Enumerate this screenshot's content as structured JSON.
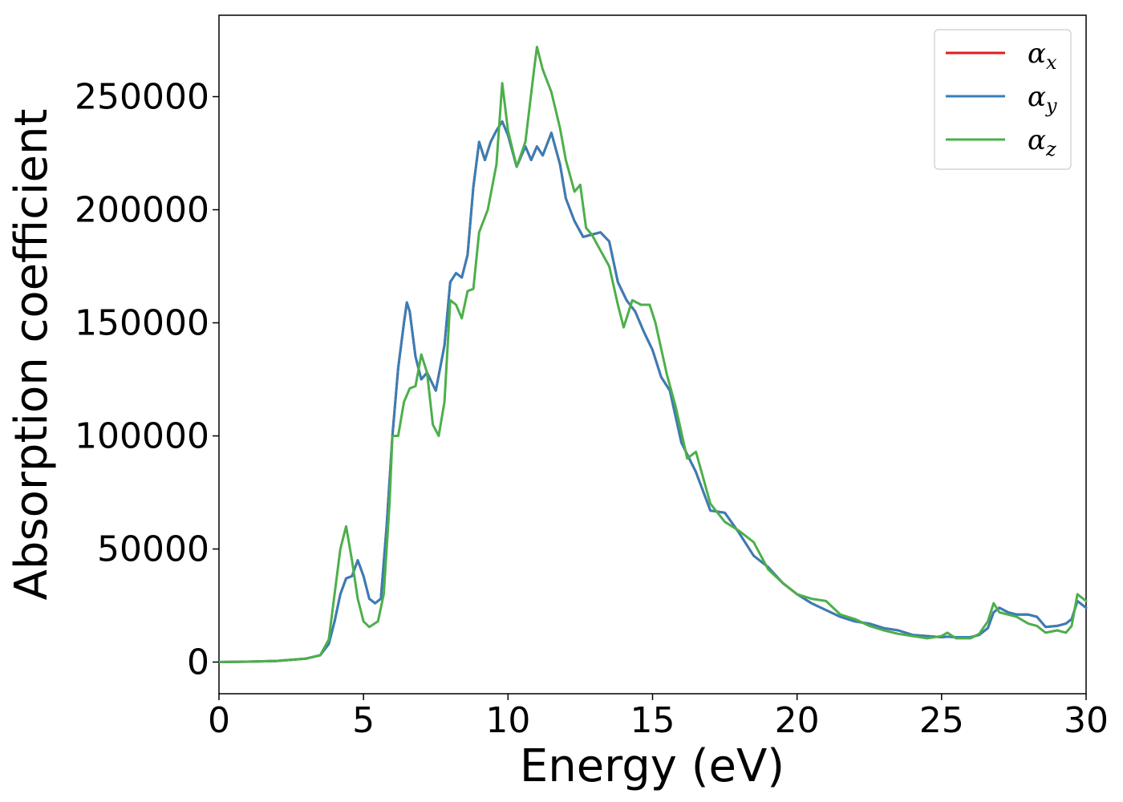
{
  "chart_data": {
    "type": "line",
    "title": "",
    "xlabel": "Energy (eV)",
    "ylabel": "Absorption coefficient",
    "xlim": [
      0,
      30
    ],
    "ylim": [
      -14000,
      286000
    ],
    "xticks": [
      0,
      5,
      10,
      15,
      20,
      25,
      30
    ],
    "yticks": [
      0,
      50000,
      100000,
      150000,
      200000,
      250000
    ],
    "grid": false,
    "legend_position": "top-right",
    "series": [
      {
        "name": "α_x",
        "base": "α",
        "sub": "x",
        "color": "#e41a1c",
        "x": [
          0,
          1,
          2,
          3,
          3.5,
          3.8,
          4.0,
          4.2,
          4.4,
          4.6,
          4.8,
          5.0,
          5.2,
          5.4,
          5.6,
          5.8,
          6.0,
          6.2,
          6.4,
          6.5,
          6.6,
          6.8,
          7.0,
          7.2,
          7.5,
          7.8,
          8.0,
          8.2,
          8.4,
          8.6,
          8.8,
          9.0,
          9.2,
          9.4,
          9.6,
          9.8,
          10.0,
          10.3,
          10.6,
          10.8,
          11.0,
          11.2,
          11.5,
          11.8,
          12.0,
          12.3,
          12.6,
          12.9,
          13.2,
          13.5,
          13.8,
          14.1,
          14.4,
          14.7,
          15.0,
          15.3,
          15.6,
          16.0,
          16.5,
          17.0,
          17.5,
          18.0,
          18.5,
          19.0,
          19.5,
          20.0,
          20.5,
          21.0,
          21.5,
          22.0,
          22.5,
          23.0,
          23.5,
          24.0,
          24.5,
          25.0,
          25.2,
          25.5,
          26.0,
          26.3,
          26.6,
          26.8,
          27.0,
          27.3,
          27.6,
          28.0,
          28.3,
          28.6,
          29.0,
          29.3,
          29.5,
          29.7,
          30.0
        ],
        "values": [
          0,
          200,
          500,
          1500,
          3000,
          8000,
          18000,
          30000,
          37000,
          38000,
          45000,
          38000,
          28000,
          26000,
          28000,
          60000,
          100000,
          130000,
          150000,
          159000,
          155000,
          135000,
          125000,
          128000,
          120000,
          140000,
          168000,
          172000,
          170000,
          180000,
          210000,
          230000,
          222000,
          230000,
          235000,
          239000,
          233000,
          219000,
          228000,
          222000,
          228000,
          224000,
          234000,
          220000,
          205000,
          195000,
          188000,
          189000,
          190000,
          186000,
          168000,
          160000,
          155000,
          146000,
          138000,
          126000,
          120000,
          97000,
          84000,
          67000,
          66000,
          57000,
          47000,
          42000,
          35000,
          30000,
          26000,
          23000,
          20000,
          18000,
          17000,
          15000,
          14000,
          12000,
          11500,
          11000,
          11200,
          11000,
          11000,
          12000,
          15000,
          22000,
          24000,
          22000,
          21000,
          21000,
          20000,
          15500,
          16000,
          17000,
          19000,
          27000,
          24000
        ]
      },
      {
        "name": "α_y",
        "base": "α",
        "sub": "y",
        "color": "#377eb8",
        "x": [
          0,
          1,
          2,
          3,
          3.5,
          3.8,
          4.0,
          4.2,
          4.4,
          4.6,
          4.8,
          5.0,
          5.2,
          5.4,
          5.6,
          5.8,
          6.0,
          6.2,
          6.4,
          6.5,
          6.6,
          6.8,
          7.0,
          7.2,
          7.5,
          7.8,
          8.0,
          8.2,
          8.4,
          8.6,
          8.8,
          9.0,
          9.2,
          9.4,
          9.6,
          9.8,
          10.0,
          10.3,
          10.6,
          10.8,
          11.0,
          11.2,
          11.5,
          11.8,
          12.0,
          12.3,
          12.6,
          12.9,
          13.2,
          13.5,
          13.8,
          14.1,
          14.4,
          14.7,
          15.0,
          15.3,
          15.6,
          16.0,
          16.5,
          17.0,
          17.5,
          18.0,
          18.5,
          19.0,
          19.5,
          20.0,
          20.5,
          21.0,
          21.5,
          22.0,
          22.5,
          23.0,
          23.5,
          24.0,
          24.5,
          25.0,
          25.2,
          25.5,
          26.0,
          26.3,
          26.6,
          26.8,
          27.0,
          27.3,
          27.6,
          28.0,
          28.3,
          28.6,
          29.0,
          29.3,
          29.5,
          29.7,
          30.0
        ],
        "values": [
          0,
          200,
          500,
          1500,
          3000,
          8000,
          18000,
          30000,
          37000,
          38000,
          45000,
          38000,
          28000,
          26000,
          28000,
          60000,
          100000,
          130000,
          150000,
          159000,
          155000,
          135000,
          125000,
          128000,
          120000,
          140000,
          168000,
          172000,
          170000,
          180000,
          210000,
          230000,
          222000,
          230000,
          235000,
          239000,
          233000,
          219000,
          228000,
          222000,
          228000,
          224000,
          234000,
          220000,
          205000,
          195000,
          188000,
          189000,
          190000,
          186000,
          168000,
          160000,
          155000,
          146000,
          138000,
          126000,
          120000,
          97000,
          84000,
          67000,
          66000,
          57000,
          47000,
          42000,
          35000,
          30000,
          26000,
          23000,
          20000,
          18000,
          17000,
          15000,
          14000,
          12000,
          11500,
          11000,
          11200,
          11000,
          11000,
          12000,
          15000,
          22000,
          24000,
          22000,
          21000,
          21000,
          20000,
          15500,
          16000,
          17000,
          19000,
          27000,
          24000
        ]
      },
      {
        "name": "α_z",
        "base": "α",
        "sub": "z",
        "color": "#4daf4a",
        "x": [
          0,
          1,
          2,
          3,
          3.5,
          3.8,
          4.0,
          4.2,
          4.4,
          4.6,
          4.8,
          5.0,
          5.2,
          5.5,
          5.7,
          5.9,
          6.0,
          6.2,
          6.4,
          6.6,
          6.8,
          7.0,
          7.2,
          7.4,
          7.6,
          7.8,
          8.0,
          8.2,
          8.4,
          8.6,
          8.8,
          9.0,
          9.3,
          9.6,
          9.8,
          10.0,
          10.3,
          10.6,
          10.9,
          11.0,
          11.2,
          11.5,
          11.8,
          12.0,
          12.3,
          12.5,
          12.7,
          12.9,
          13.2,
          13.5,
          13.8,
          14.0,
          14.3,
          14.6,
          14.9,
          15.1,
          15.5,
          15.8,
          16.2,
          16.5,
          17.0,
          17.5,
          18.0,
          18.5,
          19.0,
          19.5,
          20.0,
          20.5,
          21.0,
          21.5,
          22.0,
          22.5,
          23.0,
          23.5,
          24.0,
          24.5,
          25.0,
          25.2,
          25.5,
          26.0,
          26.3,
          26.6,
          26.8,
          27.0,
          27.3,
          27.6,
          28.0,
          28.3,
          28.6,
          29.0,
          29.3,
          29.5,
          29.7,
          30.0
        ],
        "values": [
          0,
          200,
          500,
          1500,
          3000,
          10000,
          30000,
          50000,
          60000,
          45000,
          28000,
          18000,
          15500,
          18000,
          30000,
          70000,
          100000,
          100000,
          115000,
          121000,
          122000,
          136000,
          128000,
          105000,
          100000,
          115000,
          160000,
          158000,
          152000,
          164000,
          165000,
          190000,
          200000,
          220000,
          256000,
          235000,
          219000,
          230000,
          262000,
          272000,
          262000,
          252000,
          236000,
          222000,
          208000,
          211000,
          192000,
          189000,
          182000,
          175000,
          158000,
          148000,
          160000,
          158000,
          158000,
          150000,
          127000,
          113000,
          90000,
          93000,
          70000,
          62000,
          58000,
          53000,
          41000,
          35000,
          30000,
          28000,
          27000,
          21000,
          19000,
          16000,
          14000,
          12500,
          11500,
          10500,
          11500,
          13000,
          10500,
          10500,
          12500,
          18000,
          26000,
          22000,
          21000,
          20000,
          17000,
          16000,
          13000,
          14000,
          13000,
          16000,
          30000,
          27000
        ]
      }
    ]
  }
}
